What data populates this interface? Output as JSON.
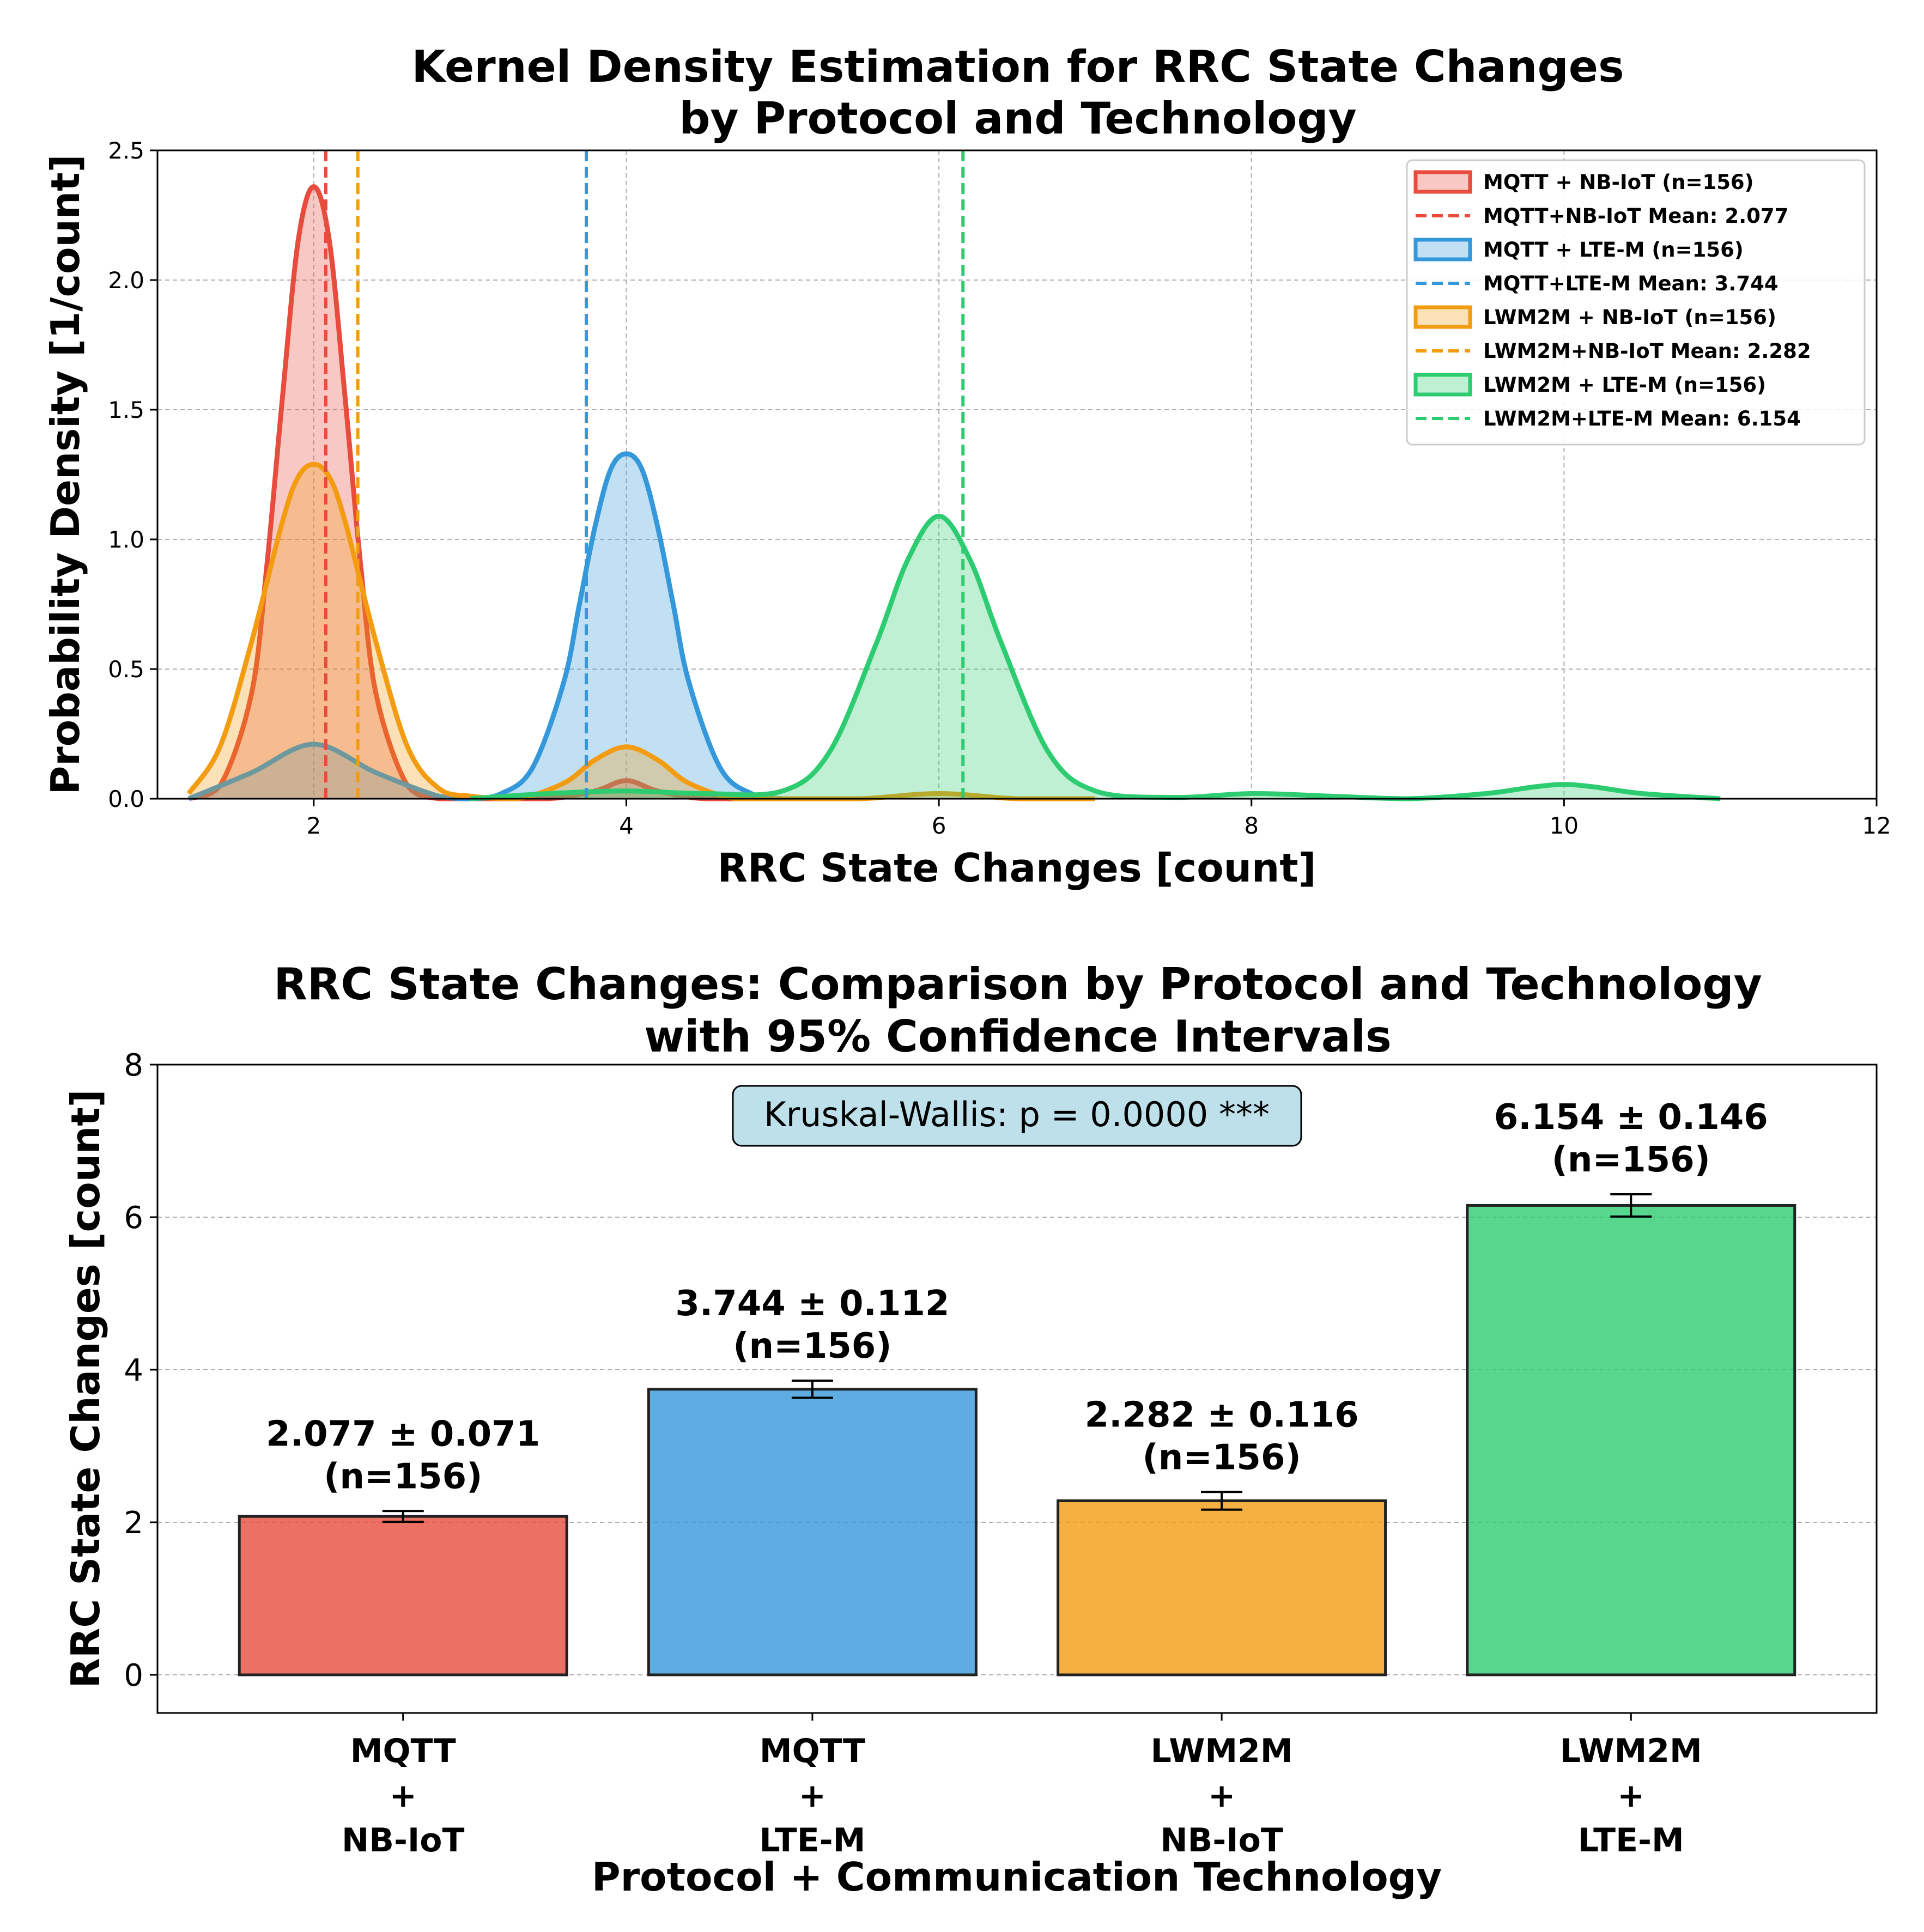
{
  "chart_data": [
    {
      "type": "area",
      "title_line1": "Kernel Density Estimation for RRC State Changes",
      "title_line2": "by Protocol and Technology",
      "xlabel": "RRC State Changes [count]",
      "ylabel": "Probability Density [1/count]",
      "xlim": [
        1,
        12
      ],
      "ylim": [
        0,
        2.5
      ],
      "xticks": [
        "2",
        "4",
        "6",
        "8",
        "10",
        "12"
      ],
      "yticks": [
        "0.0",
        "0.5",
        "1.0",
        "1.5",
        "2.0",
        "2.5"
      ],
      "grid": true,
      "legend_position": "top-right",
      "series": [
        {
          "name": "MQTT + NB-IoT (n=156)",
          "mean_label": "MQTT+NB-IoT Mean: 2.077",
          "mean": 2.077,
          "color": "#e74c3c",
          "x": [
            1.2,
            1.4,
            1.6,
            1.7,
            1.8,
            1.9,
            2.0,
            2.1,
            2.2,
            2.3,
            2.4,
            2.6,
            2.8,
            3.0,
            3.5,
            3.8,
            4.0,
            4.2,
            4.5,
            5.0
          ],
          "y": [
            0.0,
            0.05,
            0.4,
            0.9,
            1.55,
            2.15,
            2.36,
            2.15,
            1.55,
            0.9,
            0.4,
            0.05,
            0.0,
            0.0,
            0.0,
            0.03,
            0.07,
            0.03,
            0.0,
            0.0
          ]
        },
        {
          "name": "MQTT + LTE-M (n=156)",
          "mean_label": "MQTT+LTE-M Mean: 3.744",
          "mean": 3.744,
          "color": "#3498db",
          "x": [
            1.2,
            1.6,
            2.0,
            2.4,
            2.8,
            3.0,
            3.2,
            3.4,
            3.6,
            3.7,
            3.8,
            3.9,
            4.0,
            4.1,
            4.2,
            4.3,
            4.4,
            4.6,
            4.8,
            5.0
          ],
          "y": [
            0.0,
            0.1,
            0.21,
            0.1,
            0.01,
            0.0,
            0.02,
            0.12,
            0.45,
            0.75,
            1.05,
            1.27,
            1.33,
            1.27,
            1.05,
            0.75,
            0.45,
            0.12,
            0.02,
            0.0
          ]
        },
        {
          "name": "LWM2M + NB-IoT (n=156)",
          "mean_label": "LWM2M+NB-IoT Mean: 2.282",
          "mean": 2.282,
          "color": "#f39c12",
          "x": [
            1.2,
            1.4,
            1.6,
            1.8,
            1.9,
            2.0,
            2.1,
            2.2,
            2.4,
            2.6,
            2.8,
            3.0,
            3.3,
            3.6,
            3.8,
            4.0,
            4.2,
            4.4,
            4.7,
            5.0,
            5.5,
            6.0,
            6.5,
            7.0
          ],
          "y": [
            0.02,
            0.2,
            0.6,
            1.07,
            1.24,
            1.29,
            1.24,
            1.07,
            0.6,
            0.2,
            0.04,
            0.01,
            0.0,
            0.06,
            0.15,
            0.2,
            0.15,
            0.06,
            0.0,
            0.0,
            0.0,
            0.02,
            0.0,
            0.0
          ]
        },
        {
          "name": "LWM2M + LTE-M (n=156)",
          "mean_label": "LWM2M+LTE-M Mean: 6.154",
          "mean": 6.154,
          "color": "#2ecc71",
          "x": [
            3.0,
            3.5,
            4.0,
            4.5,
            5.0,
            5.3,
            5.6,
            5.8,
            6.0,
            6.2,
            6.4,
            6.7,
            7.0,
            7.5,
            8.0,
            8.5,
            9.0,
            9.5,
            9.8,
            10.0,
            10.2,
            10.5,
            11.0
          ],
          "y": [
            0.0,
            0.02,
            0.03,
            0.02,
            0.03,
            0.18,
            0.6,
            0.92,
            1.09,
            0.92,
            0.6,
            0.18,
            0.03,
            0.005,
            0.02,
            0.01,
            0.0,
            0.02,
            0.045,
            0.055,
            0.045,
            0.02,
            0.0
          ]
        }
      ]
    },
    {
      "type": "bar",
      "title_line1": "RRC State Changes: Comparison by Protocol and Technology",
      "title_line2": "with 95% Confidence Intervals",
      "xlabel": "Protocol + Communication Technology",
      "ylabel": "RRC State Changes [count]",
      "ylim": [
        -0.5,
        8
      ],
      "yticks": [
        "0",
        "2",
        "4",
        "6",
        "8"
      ],
      "grid": true,
      "annotation": "Kruskal-Wallis: p = 0.0000 ***",
      "categories": [
        [
          "MQTT",
          "+",
          "NB-IoT"
        ],
        [
          "MQTT",
          "+",
          "LTE-M"
        ],
        [
          "LWM2M",
          "+",
          "NB-IoT"
        ],
        [
          "LWM2M",
          "+",
          "LTE-M"
        ]
      ],
      "values": [
        2.077,
        3.744,
        2.282,
        6.154
      ],
      "ci": [
        0.071,
        0.112,
        0.116,
        0.146
      ],
      "value_labels": [
        "2.077 ± 0.071",
        "3.744 ± 0.112",
        "2.282 ± 0.116",
        "6.154 ± 0.146"
      ],
      "n_labels": [
        "(n=156)",
        "(n=156)",
        "(n=156)",
        "(n=156)"
      ],
      "colors": [
        "#e74c3c",
        "#3498db",
        "#f39c12",
        "#2ecc71"
      ]
    }
  ]
}
